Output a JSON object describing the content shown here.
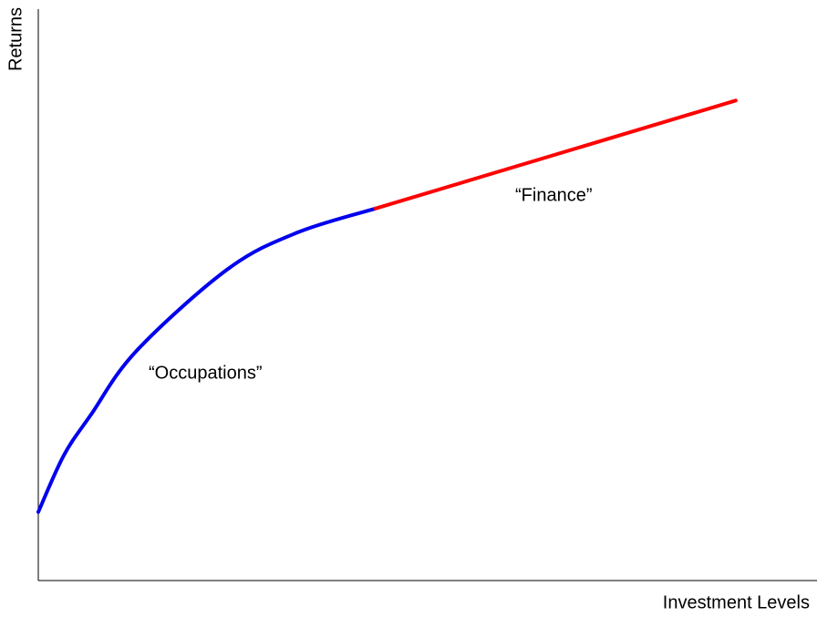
{
  "chart_data": {
    "type": "line",
    "xlabel": "Investment Levels",
    "ylabel": "Returns",
    "x": [
      0,
      3.3,
      6.8,
      12.7,
      24.5,
      33.5,
      43.6,
      90.2
    ],
    "series": [
      {
        "name": "Occupations",
        "color": "#0000ee",
        "values": [
          12,
          21.9,
          29,
          40.2,
          54.5,
          60.9,
          65.1,
          null
        ]
      },
      {
        "name": "Finance",
        "color": "#ff0000",
        "values": [
          null,
          null,
          null,
          null,
          null,
          null,
          65.1,
          84
        ]
      }
    ],
    "annotations": [
      "“Occupations”",
      "“Finance”"
    ],
    "xlim": [
      0,
      100
    ],
    "ylim": [
      0,
      100
    ]
  }
}
